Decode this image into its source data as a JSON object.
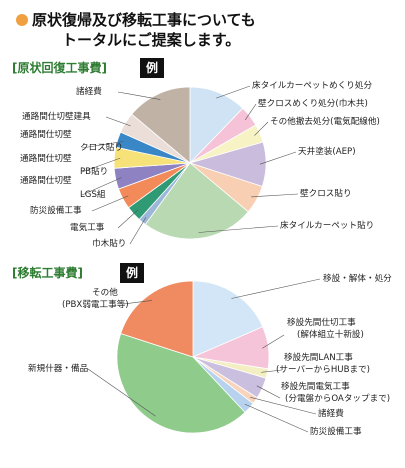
{
  "header": {
    "title_line1": "原状復帰及び移転工事についても",
    "title_line2": "トータルにご提案します。"
  },
  "sections": [
    {
      "label": "[原状回復工事費]",
      "badge": "例"
    },
    {
      "label": "[移転工事費]",
      "badge": "例"
    }
  ],
  "chart_data": [
    {
      "type": "pie",
      "title": "原状回復工事費",
      "slices": [
        {
          "label": "床タイルカーペットめくり処分",
          "value": 11.0,
          "color": "#cfe3f5"
        },
        {
          "label": "壁クロスめくり処分(巾木共)",
          "value": 4.0,
          "color": "#f6c2d7"
        },
        {
          "label": "その他撤去処分(電気配線他)",
          "value": 3.5,
          "color": "#f7f3c4"
        },
        {
          "label": "天井塗装(AEP)",
          "value": 8.5,
          "color": "#c9bcdd"
        },
        {
          "label": "壁クロス貼り",
          "value": 5.5,
          "color": "#f9cfb3"
        },
        {
          "label": "床タイルカーペット貼り",
          "value": 21.5,
          "color": "#b9d9b3"
        },
        {
          "label": "巾木貼り",
          "value": 1.5,
          "color": "#9db7d9"
        },
        {
          "label": "電気工事",
          "value": 3.0,
          "color": "#2f9a74"
        },
        {
          "label": "防災設備工事",
          "value": 4.0,
          "color": "#f28a5a"
        },
        {
          "label": "通路間仕切壁 LGS組",
          "value": 4.0,
          "color": "#8e82c3"
        },
        {
          "label": "通路間仕切壁 PB貼り",
          "value": 4.0,
          "color": "#f7e27a"
        },
        {
          "label": "通路間仕切壁 クロス貼り",
          "value": 3.0,
          "color": "#3a87c7"
        },
        {
          "label": "通路間仕切壁建具",
          "value": 4.0,
          "color": "#ebded9"
        },
        {
          "label": "諸経費",
          "value": 12.5,
          "color": "#c0b3a5"
        }
      ]
    },
    {
      "type": "pie",
      "title": "移転工事費",
      "slices": [
        {
          "label": "移設・解体・処分",
          "value": 18.5,
          "color": "#d3e6f7"
        },
        {
          "label": "移設先間仕切工事 (解体組立十新設)",
          "value": 9.0,
          "color": "#f6c4d8"
        },
        {
          "label": "移設先間LAN工事 (サーバーからHUBまで)",
          "value": 2.0,
          "color": "#f4efc3"
        },
        {
          "label": "移設先間電気工事 (分電盤からOAタップまで)",
          "value": 4.5,
          "color": "#cbbfe0"
        },
        {
          "label": "諸経費",
          "value": 1.5,
          "color": "#f9d4bc"
        },
        {
          "label": "防災設備工事",
          "value": 2.5,
          "color": "#b6d2ee"
        },
        {
          "label": "新規什器・備品",
          "value": 42.0,
          "color": "#8fcb8b"
        },
        {
          "label": "その他 (PBX弱電工事等)",
          "value": 20.0,
          "color": "#f08a60"
        }
      ]
    }
  ]
}
